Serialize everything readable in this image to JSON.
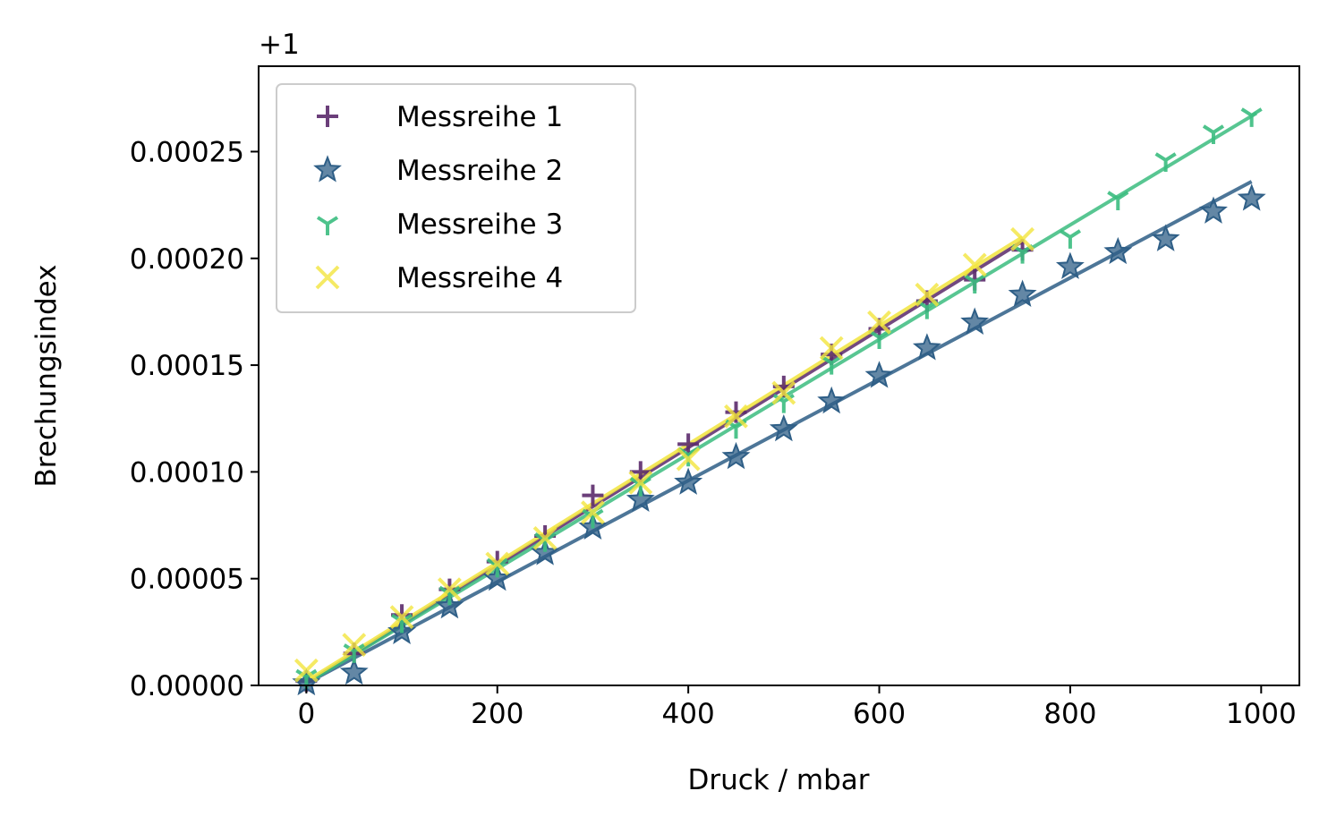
{
  "chart_data": {
    "type": "scatter",
    "xlabel": "Druck / mbar",
    "ylabel": "Brechungsindex",
    "offset_label": "+1",
    "xlim": [
      -50,
      1040
    ],
    "ylim": [
      0,
      0.00029
    ],
    "xticks": [
      0,
      200,
      400,
      600,
      800,
      1000
    ],
    "xtick_labels": [
      "0",
      "200",
      "400",
      "600",
      "800",
      "1000"
    ],
    "yticks": [
      0,
      5e-05,
      0.0001,
      0.00015,
      0.0002,
      0.00025
    ],
    "ytick_labels": [
      "0.00000",
      "0.00005",
      "0.00010",
      "0.00015",
      "0.00020",
      "0.00025"
    ],
    "grid": false,
    "legend_position": "top-left",
    "series": [
      {
        "name": "Messreihe 1",
        "marker": "plus",
        "color": "#5b2a6b",
        "x": [
          0,
          50,
          100,
          150,
          200,
          250,
          300,
          350,
          400,
          450,
          500,
          550,
          600,
          650,
          700,
          750
        ],
        "y": [
          2e-06,
          1.5e-05,
          3.3e-05,
          4.5e-05,
          5.8e-05,
          7e-05,
          8.9e-05,
          0.0001,
          0.000113,
          0.000128,
          0.00014,
          0.000155,
          0.000167,
          0.00018,
          0.00019,
          0.000204
        ],
        "fit": [
          [
            0,
            1e-06
          ],
          [
            750,
            0.000208
          ]
        ]
      },
      {
        "name": "Messreihe 2",
        "marker": "star",
        "color": "#2f5f87",
        "x": [
          0,
          50,
          100,
          150,
          200,
          250,
          300,
          350,
          400,
          450,
          500,
          550,
          600,
          650,
          700,
          750,
          800,
          850,
          900,
          950,
          990
        ],
        "y": [
          1e-06,
          6e-06,
          2.5e-05,
          3.7e-05,
          5e-05,
          6.2e-05,
          7.4e-05,
          8.7e-05,
          9.5e-05,
          0.000107,
          0.00012,
          0.000133,
          0.000145,
          0.000158,
          0.00017,
          0.000183,
          0.000196,
          0.000203,
          0.000209,
          0.000222,
          0.000228
        ],
        "fit": [
          [
            0,
            1e-06
          ],
          [
            990,
            0.000236
          ]
        ]
      },
      {
        "name": "Messreihe 3",
        "marker": "tri_down",
        "color": "#3bbd7f",
        "x": [
          0,
          50,
          100,
          150,
          200,
          250,
          300,
          350,
          400,
          450,
          500,
          550,
          600,
          650,
          700,
          750,
          800,
          850,
          900,
          950,
          990
        ],
        "y": [
          4e-06,
          1.6e-05,
          3e-05,
          4.3e-05,
          5.6e-05,
          6.8e-05,
          7.9e-05,
          9.4e-05,
          0.000108,
          0.000121,
          0.000133,
          0.000151,
          0.000163,
          0.000177,
          0.000189,
          0.000203,
          0.00021,
          0.000228,
          0.000246,
          0.000259,
          0.000267
        ],
        "fit": [
          [
            0,
            1e-06
          ],
          [
            995,
            0.000268
          ]
        ]
      },
      {
        "name": "Messreihe 4",
        "marker": "x",
        "color": "#f2e53d",
        "x": [
          0,
          50,
          100,
          150,
          200,
          250,
          300,
          350,
          400,
          450,
          500,
          550,
          600,
          650,
          700,
          750
        ],
        "y": [
          7e-06,
          1.9e-05,
          3.2e-05,
          4.5e-05,
          5.7e-05,
          6.9e-05,
          8.1e-05,
          9.5e-05,
          0.000106,
          0.000126,
          0.000137,
          0.000158,
          0.00017,
          0.000183,
          0.000197,
          0.000209
        ],
        "fit": [
          [
            0,
            2e-06
          ],
          [
            750,
            0.00021
          ]
        ]
      }
    ]
  }
}
